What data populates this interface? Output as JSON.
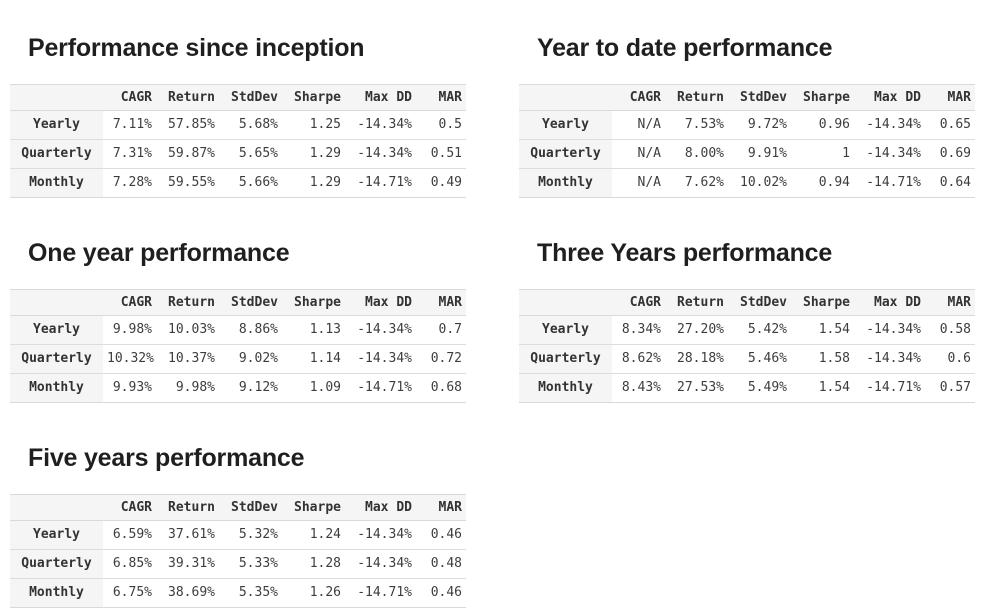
{
  "theme": {
    "background": "#ffffff",
    "title_color": "#1f1f1f",
    "text_color": "#3d3d3d",
    "header_background": "#f5f5f5",
    "row_label_background": "#f5f5f5",
    "border_color": "#d9d9d9"
  },
  "tables": [
    {
      "title": "Performance since inception",
      "columns": [
        "",
        "CAGR",
        "Return",
        "StdDev",
        "Sharpe",
        "Max DD",
        "MAR"
      ],
      "rows": [
        {
          "label": "Yearly",
          "values": [
            "7.11%",
            "57.85%",
            "5.68%",
            "1.25",
            "-14.34%",
            "0.5"
          ]
        },
        {
          "label": "Quarterly",
          "values": [
            "7.31%",
            "59.87%",
            "5.65%",
            "1.29",
            "-14.34%",
            "0.51"
          ]
        },
        {
          "label": "Monthly",
          "values": [
            "7.28%",
            "59.55%",
            "5.66%",
            "1.29",
            "-14.71%",
            "0.49"
          ]
        }
      ]
    },
    {
      "title": "Year to date performance",
      "columns": [
        "",
        "CAGR",
        "Return",
        "StdDev",
        "Sharpe",
        "Max DD",
        "MAR"
      ],
      "rows": [
        {
          "label": "Yearly",
          "values": [
            "N/A",
            "7.53%",
            "9.72%",
            "0.96",
            "-14.34%",
            "0.65"
          ]
        },
        {
          "label": "Quarterly",
          "values": [
            "N/A",
            "8.00%",
            "9.91%",
            "1",
            "-14.34%",
            "0.69"
          ]
        },
        {
          "label": "Monthly",
          "values": [
            "N/A",
            "7.62%",
            "10.02%",
            "0.94",
            "-14.71%",
            "0.64"
          ]
        }
      ]
    },
    {
      "title": "One year performance",
      "columns": [
        "",
        "CAGR",
        "Return",
        "StdDev",
        "Sharpe",
        "Max DD",
        "MAR"
      ],
      "rows": [
        {
          "label": "Yearly",
          "values": [
            "9.98%",
            "10.03%",
            "8.86%",
            "1.13",
            "-14.34%",
            "0.7"
          ]
        },
        {
          "label": "Quarterly",
          "values": [
            "10.32%",
            "10.37%",
            "9.02%",
            "1.14",
            "-14.34%",
            "0.72"
          ]
        },
        {
          "label": "Monthly",
          "values": [
            "9.93%",
            "9.98%",
            "9.12%",
            "1.09",
            "-14.71%",
            "0.68"
          ]
        }
      ]
    },
    {
      "title": "Three Years performance",
      "columns": [
        "",
        "CAGR",
        "Return",
        "StdDev",
        "Sharpe",
        "Max DD",
        "MAR"
      ],
      "rows": [
        {
          "label": "Yearly",
          "values": [
            "8.34%",
            "27.20%",
            "5.42%",
            "1.54",
            "-14.34%",
            "0.58"
          ]
        },
        {
          "label": "Quarterly",
          "values": [
            "8.62%",
            "28.18%",
            "5.46%",
            "1.58",
            "-14.34%",
            "0.6"
          ]
        },
        {
          "label": "Monthly",
          "values": [
            "8.43%",
            "27.53%",
            "5.49%",
            "1.54",
            "-14.71%",
            "0.57"
          ]
        }
      ]
    },
    {
      "title": "Five years performance",
      "columns": [
        "",
        "CAGR",
        "Return",
        "StdDev",
        "Sharpe",
        "Max DD",
        "MAR"
      ],
      "rows": [
        {
          "label": "Yearly",
          "values": [
            "6.59%",
            "37.61%",
            "5.32%",
            "1.24",
            "-14.34%",
            "0.46"
          ]
        },
        {
          "label": "Quarterly",
          "values": [
            "6.85%",
            "39.31%",
            "5.33%",
            "1.28",
            "-14.34%",
            "0.48"
          ]
        },
        {
          "label": "Monthly",
          "values": [
            "6.75%",
            "38.69%",
            "5.35%",
            "1.26",
            "-14.71%",
            "0.46"
          ]
        }
      ]
    }
  ]
}
